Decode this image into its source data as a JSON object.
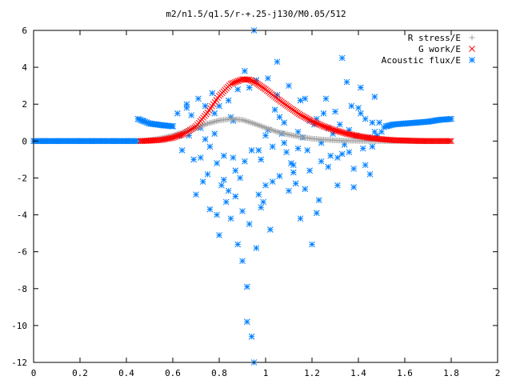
{
  "chart_data": {
    "type": "scatter",
    "title": "m2/n1.5/q1.5/r-+.25-j130/M0.05/512",
    "xlabel": "",
    "ylabel": "",
    "xlim": [
      0,
      2
    ],
    "ylim": [
      -12,
      6
    ],
    "x_ticks": [
      "0",
      "0.2",
      "0.4",
      "0.6",
      "0.8",
      "1",
      "1.2",
      "1.4",
      "1.6",
      "1.8",
      "2"
    ],
    "y_ticks": [
      "6",
      "4",
      "2",
      "0",
      "-2",
      "-4",
      "-6",
      "-8",
      "-10",
      "-12"
    ],
    "grid": false,
    "legend_position": "top-right",
    "series": [
      {
        "name": "R stress/E",
        "marker": "+",
        "color": "#a0a0a0",
        "x": [
          0.46,
          0.5,
          0.55,
          0.6,
          0.65,
          0.7,
          0.75,
          0.8,
          0.85,
          0.9,
          0.95,
          1.0,
          1.05,
          1.1,
          1.15,
          1.2,
          1.25,
          1.3,
          1.35,
          1.4,
          1.45,
          1.5,
          1.55,
          1.6,
          1.65,
          1.7,
          1.75,
          1.8
        ],
        "y": [
          0.0,
          0.05,
          0.15,
          0.3,
          0.5,
          0.72,
          0.95,
          1.12,
          1.2,
          1.15,
          0.95,
          0.72,
          0.5,
          0.35,
          0.22,
          0.13,
          0.08,
          0.04,
          0.02,
          0.01,
          0.0,
          0.0,
          0.0,
          0.0,
          0.0,
          0.0,
          0.0,
          0.0
        ]
      },
      {
        "name": "G work/E",
        "marker": "x",
        "color": "#ff0000",
        "x": [
          0.46,
          0.5,
          0.55,
          0.6,
          0.65,
          0.7,
          0.75,
          0.8,
          0.85,
          0.9,
          0.93,
          0.96,
          1.0,
          1.05,
          1.1,
          1.15,
          1.2,
          1.25,
          1.3,
          1.35,
          1.4,
          1.45,
          1.5,
          1.55,
          1.6,
          1.65,
          1.7,
          1.75,
          1.8
        ],
        "y": [
          0.0,
          0.02,
          0.06,
          0.18,
          0.4,
          0.8,
          1.55,
          2.45,
          3.1,
          3.35,
          3.33,
          3.15,
          2.8,
          2.3,
          1.85,
          1.42,
          1.08,
          0.8,
          0.58,
          0.4,
          0.27,
          0.17,
          0.1,
          0.05,
          0.03,
          0.01,
          0.0,
          0.0,
          0.0
        ]
      },
      {
        "name": "Acoustic flux/E",
        "marker": "*",
        "color": "#0080ff",
        "x": [
          0.0,
          0.05,
          0.1,
          0.15,
          0.2,
          0.25,
          0.3,
          0.35,
          0.4,
          0.45,
          0.45,
          0.47,
          0.5,
          0.53,
          0.56,
          0.6,
          0.62,
          0.64,
          0.66,
          0.67,
          0.68,
          0.69,
          0.7,
          0.71,
          0.72,
          0.73,
          0.74,
          0.75,
          0.76,
          0.77,
          0.78,
          0.79,
          0.8,
          0.8,
          0.81,
          0.82,
          0.83,
          0.84,
          0.85,
          0.86,
          0.87,
          0.88,
          0.89,
          0.9,
          0.91,
          0.92,
          0.93,
          0.94,
          0.95,
          0.96,
          0.97,
          0.98,
          0.99,
          1.0,
          1.01,
          1.02,
          1.03,
          1.04,
          1.05,
          1.06,
          1.07,
          1.08,
          1.09,
          1.1,
          1.11,
          1.12,
          1.13,
          1.14,
          1.15,
          1.16,
          1.17,
          1.18,
          1.19,
          1.2,
          1.21,
          1.22,
          1.23,
          1.24,
          1.25,
          1.26,
          1.27,
          1.28,
          1.29,
          1.3,
          1.31,
          1.32,
          1.33,
          1.34,
          1.35,
          1.36,
          1.37,
          1.38,
          1.39,
          1.4,
          1.41,
          1.42,
          1.43,
          1.44,
          1.45,
          1.46,
          1.47,
          1.48,
          1.49,
          1.5,
          1.51,
          1.52,
          1.55,
          1.6,
          1.65,
          1.7,
          1.75,
          1.8,
          0.63,
          0.72,
          0.76,
          0.79,
          0.84,
          0.87,
          0.9,
          0.92,
          0.95,
          0.98,
          1.03,
          1.08,
          1.12,
          1.17,
          1.22,
          1.27,
          1.33,
          1.38,
          1.43,
          1.47,
          0.66,
          0.74,
          0.82,
          0.86,
          0.94,
          1.01,
          1.06,
          1.14,
          1.19,
          1.24,
          1.31,
          1.36,
          1.41,
          1.46,
          0.88,
          0.91,
          0.93,
          0.97,
          1.05,
          1.1,
          1.15,
          0.78,
          0.85,
          0.96,
          1.0
        ],
        "y": [
          0.0,
          0.0,
          0.0,
          0.0,
          0.0,
          0.0,
          0.0,
          0.0,
          0.0,
          0.0,
          1.2,
          1.1,
          0.95,
          0.9,
          0.85,
          0.8,
          1.5,
          -0.5,
          2.0,
          0.3,
          1.4,
          -1.0,
          -2.9,
          2.3,
          0.7,
          -2.2,
          1.9,
          -1.8,
          -3.7,
          2.6,
          0.4,
          -1.2,
          -5.1,
          1.9,
          -2.4,
          -0.8,
          -3.3,
          2.2,
          -4.2,
          -0.9,
          -1.6,
          -5.6,
          -2.0,
          -3.8,
          -1.1,
          -7.9,
          -4.5,
          -10.6,
          6.0,
          -5.8,
          -2.9,
          -1.0,
          -3.3,
          -2.4,
          0.6,
          -4.8,
          -0.3,
          1.7,
          2.5,
          -1.9,
          0.4,
          1.0,
          -0.6,
          -2.7,
          -1.2,
          -1.3,
          -2.3,
          0.5,
          -4.2,
          0.2,
          2.3,
          -0.5,
          1.1,
          -5.6,
          0.9,
          1.2,
          -3.2,
          -1.1,
          1.5,
          2.3,
          0.7,
          -0.8,
          0.4,
          1.6,
          -2.4,
          0.9,
          4.5,
          -0.2,
          3.2,
          -0.6,
          1.9,
          -2.5,
          0.3,
          1.8,
          2.9,
          -0.4,
          1.2,
          0.2,
          -1.8,
          1.0,
          2.4,
          0.3,
          1.0,
          0.5,
          0.75,
          0.8,
          0.9,
          0.95,
          1.0,
          1.05,
          1.15,
          1.2,
          0.3,
          -0.9,
          -0.3,
          -4.0,
          -2.7,
          -3.0,
          -6.5,
          -9.8,
          -12.0,
          -3.6,
          -2.2,
          -0.1,
          -1.7,
          -2.6,
          -3.9,
          -1.4,
          -0.7,
          -1.5,
          -1.3,
          0.5,
          1.8,
          0.1,
          -2.1,
          1.1,
          -0.5,
          3.4,
          1.3,
          -0.4,
          -1.6,
          -0.1,
          -0.9,
          0.6,
          1.5,
          -0.3,
          2.8,
          3.8,
          2.9,
          -0.5,
          4.3,
          3.0,
          2.2,
          1.5,
          1.3,
          3.3,
          0.3
        ]
      }
    ]
  }
}
